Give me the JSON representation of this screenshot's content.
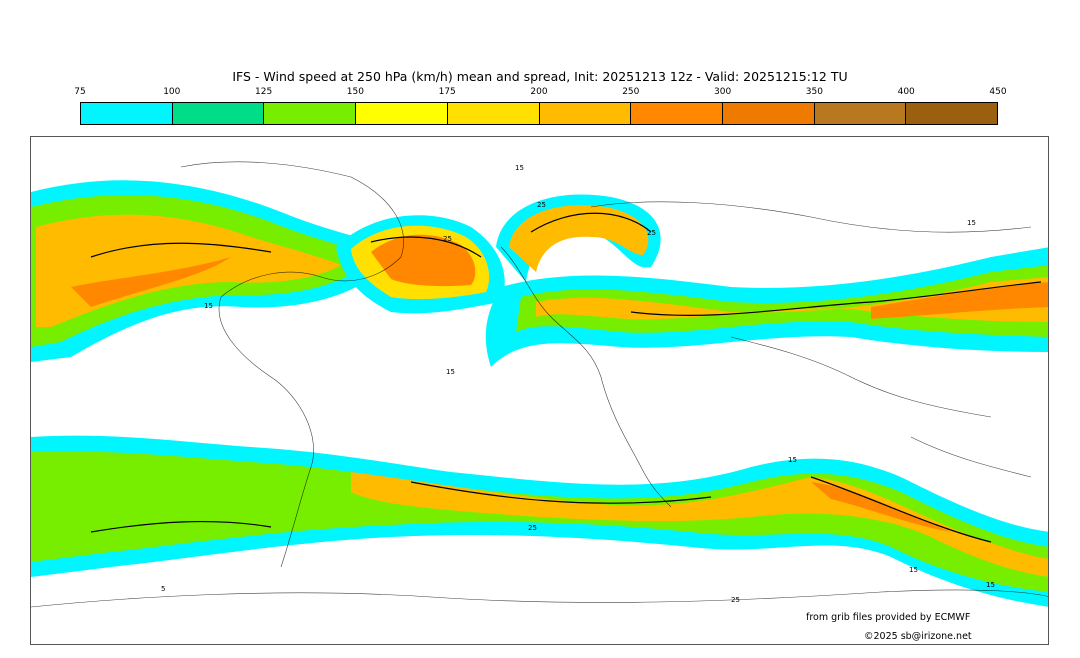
{
  "title": "IFS - Wind speed at 250 hPa (km/h) mean and spread, Init: 20251213 12z - Valid: 20251215:12 TU",
  "legend": {
    "ticks": [
      "75",
      "100",
      "125",
      "150",
      "175",
      "200",
      "250",
      "300",
      "350",
      "400",
      "450"
    ],
    "colors": [
      "#00f5ff",
      "#00dd88",
      "#77ee00",
      "#ffff00",
      "#ffe000",
      "#ffbb00",
      "#ff8800",
      "#ee7a00",
      "#b87820",
      "#9a6010"
    ]
  },
  "contour_labels": {
    "a": "15",
    "b": "25",
    "c": "25",
    "d": "15",
    "e": "15",
    "f": "25",
    "g": "15",
    "h": "15",
    "i": "5",
    "j": "25",
    "k": "25",
    "l": "15",
    "m": "15"
  },
  "credits": {
    "source": "from grib files provided by ECMWF",
    "copyright": "©2025 sb@irizone.net"
  }
}
